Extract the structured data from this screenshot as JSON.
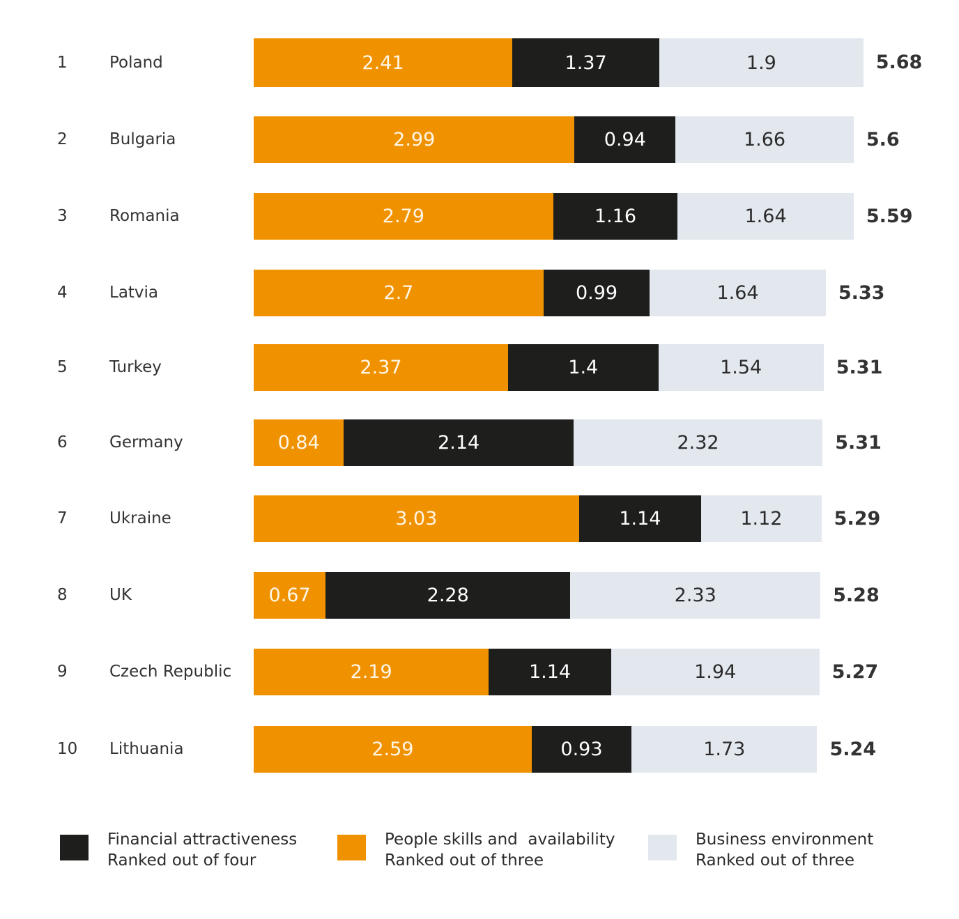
{
  "colors": {
    "people": "#f09200",
    "financial": "#1e1e1d",
    "business": "#e3e8ef"
  },
  "chart_data": {
    "type": "bar",
    "orientation": "horizontal",
    "stacked": true,
    "title": "",
    "xlabel": "",
    "ylabel": "",
    "grid": false,
    "legend_position": "bottom",
    "categories": [
      "Poland",
      "Bulgaria",
      "Romania",
      "Latvia",
      "Turkey",
      "Germany",
      "Ukraine",
      "UK",
      "Czech Republic",
      "Lithuania"
    ],
    "ranks": [
      "1",
      "2",
      "3",
      "4",
      "5",
      "6",
      "7",
      "8",
      "9",
      "10"
    ],
    "series": [
      {
        "key": "people",
        "name": "People skills and  availability",
        "subtitle": "Ranked out of three",
        "values": [
          2.41,
          2.99,
          2.79,
          2.7,
          2.37,
          0.84,
          3.03,
          0.67,
          2.19,
          2.59
        ],
        "labels": [
          "2.41",
          "2.99",
          "2.79",
          "2.7",
          "2.37",
          "0.84",
          "3.03",
          "0.67",
          "2.19",
          "2.59"
        ]
      },
      {
        "key": "financial",
        "name": "Financial attractiveness",
        "subtitle": "Ranked out of four",
        "values": [
          1.37,
          0.94,
          1.16,
          0.99,
          1.4,
          2.14,
          1.14,
          2.28,
          1.14,
          0.93
        ],
        "labels": [
          "1.37",
          "0.94",
          "1.16",
          "0.99",
          "1.4",
          "2.14",
          "1.14",
          "2.28",
          "1.14",
          "0.93"
        ]
      },
      {
        "key": "business",
        "name": "Business environment",
        "subtitle": "Ranked out of three",
        "values": [
          1.9,
          1.66,
          1.64,
          1.64,
          1.54,
          2.32,
          1.12,
          2.33,
          1.94,
          1.73
        ],
        "labels": [
          "1.9",
          "1.66",
          "1.64",
          "1.64",
          "1.54",
          "2.32",
          "1.12",
          "2.33",
          "1.94",
          "1.73"
        ]
      }
    ],
    "totals": [
      5.68,
      5.6,
      5.59,
      5.33,
      5.31,
      5.31,
      5.29,
      5.28,
      5.27,
      5.24
    ],
    "total_labels": [
      "5.68",
      "5.6",
      "5.59",
      "5.33",
      "5.31",
      "5.31",
      "5.29",
      "5.28",
      "5.27",
      "5.24"
    ],
    "xlim": [
      0,
      6
    ]
  },
  "legend": {
    "items": [
      {
        "key": "financial",
        "line1": "Financial attractiveness",
        "line2": "Ranked out of four"
      },
      {
        "key": "people",
        "line1": "People skills and  availability",
        "line2": "Ranked out of three"
      },
      {
        "key": "business",
        "line1": "Business environment",
        "line2": "Ranked out of three"
      }
    ]
  }
}
